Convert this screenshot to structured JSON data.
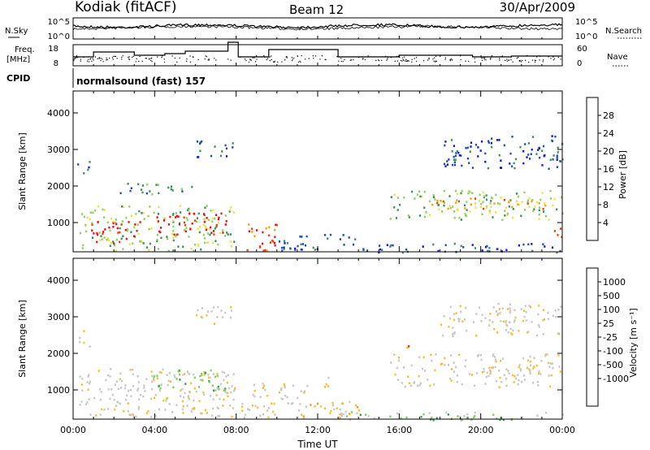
{
  "header": {
    "station": "Kodiak (fitACF)",
    "beam": "Beam 12",
    "date": "30/Apr/2009"
  },
  "sky_panel": {
    "left_label": "N.Sky",
    "left_ticks": [
      "10^5",
      "10^0"
    ],
    "right_label": "N.Search",
    "right_ticks": [
      "10^5",
      "10^0"
    ]
  },
  "freq_panel": {
    "left_label_1": "Freq.",
    "left_label_2": "[MHz]",
    "left_ticks": [
      "18",
      "8"
    ],
    "right_label": "Nave",
    "right_ticks": [
      "60",
      "0"
    ]
  },
  "cpid": {
    "label": "CPID",
    "text": "normalsound (fast) 157"
  },
  "colors": {
    "power": [
      "#0a14ee",
      "#1f4db0",
      "#3a8f5a",
      "#8fd060",
      "#f2e040",
      "#ff9a10",
      "#f04010",
      "#ee1010"
    ],
    "velocity": [
      "#ee1010",
      "#f03010",
      "#ff9a10",
      "#f4c030",
      "#c8c8c8",
      "#c8c8c8",
      "#7ad05a",
      "#3f9a4a",
      "#2a70b0",
      "#1a30c0"
    ]
  },
  "chart_data": [
    {
      "type": "heatmap",
      "name": "power",
      "xlabel": "",
      "ylabel": "Slant Range [km]",
      "x_ticks": [
        "00:00",
        "04:00",
        "08:00",
        "12:00",
        "16:00",
        "20:00",
        "00:00"
      ],
      "y_ticks": [
        "1000",
        "2000",
        "3000",
        "4000"
      ],
      "ylim": [
        200,
        4600
      ],
      "colorbar": {
        "label": "Power [dB]",
        "ticks": [
          "4",
          "8",
          "12",
          "16",
          "20",
          "24",
          "28"
        ]
      },
      "regions": [
        {
          "t0": 0.3,
          "t1": 8.0,
          "r0": 250,
          "r1": 1500,
          "level": 3
        },
        {
          "t0": 0.8,
          "t1": 3.3,
          "r0": 450,
          "r1": 1050,
          "level": 7
        },
        {
          "t0": 4.0,
          "t1": 7.7,
          "r0": 700,
          "r1": 1300,
          "level": 7
        },
        {
          "t0": 8.2,
          "t1": 10.0,
          "r0": 250,
          "r1": 1050,
          "level": 6
        },
        {
          "t0": 10.0,
          "t1": 14.0,
          "r0": 250,
          "r1": 700,
          "level": 1
        },
        {
          "t0": 14.0,
          "t1": 24.0,
          "r0": 200,
          "r1": 450,
          "level": 1
        },
        {
          "t0": 15.5,
          "t1": 24.0,
          "r0": 1100,
          "r1": 1900,
          "level": 3
        },
        {
          "t0": 17.5,
          "t1": 23.5,
          "r0": 1400,
          "r1": 1700,
          "level": 5
        },
        {
          "t0": 23.3,
          "t1": 24.0,
          "r0": 600,
          "r1": 900,
          "level": 6
        },
        {
          "t0": 0.2,
          "t1": 0.8,
          "r0": 2200,
          "r1": 2700,
          "level": 1
        },
        {
          "t0": 6.0,
          "t1": 8.2,
          "r0": 2800,
          "r1": 3300,
          "level": 1
        },
        {
          "t0": 2.0,
          "t1": 6.0,
          "r0": 1800,
          "r1": 2100,
          "level": 2
        },
        {
          "t0": 18.0,
          "t1": 24.0,
          "r0": 2500,
          "r1": 3400,
          "level": 1
        }
      ]
    },
    {
      "type": "heatmap",
      "name": "velocity",
      "xlabel": "Time UT",
      "ylabel": "Slant Range [km]",
      "x_ticks": [
        "00:00",
        "04:00",
        "08:00",
        "12:00",
        "16:00",
        "20:00",
        "00:00"
      ],
      "y_ticks": [
        "1000",
        "2000",
        "3000",
        "4000"
      ],
      "ylim": [
        200,
        4600
      ],
      "colorbar": {
        "label": "Velocity [m s⁻¹]",
        "ticks": [
          "1000",
          "500",
          "100",
          "25",
          "-25",
          "-100",
          "-500",
          "-1000"
        ]
      },
      "regions": [
        {
          "t0": 0.3,
          "t1": 8.0,
          "r0": 250,
          "r1": 1600,
          "level": 4
        },
        {
          "t0": 3.8,
          "t1": 7.5,
          "r0": 1000,
          "r1": 1600,
          "level": 6
        },
        {
          "t0": 8.2,
          "t1": 11.5,
          "r0": 250,
          "r1": 1200,
          "level": 4
        },
        {
          "t0": 11.0,
          "t1": 14.0,
          "r0": 250,
          "r1": 700,
          "level": 3
        },
        {
          "t0": 13.0,
          "t1": 24.0,
          "r0": 200,
          "r1": 420,
          "level": 6
        },
        {
          "t0": 15.5,
          "t1": 24.0,
          "r0": 1100,
          "r1": 2000,
          "level": 4
        },
        {
          "t0": 11.8,
          "t1": 12.5,
          "r0": 1100,
          "r1": 1400,
          "level": 3
        },
        {
          "t0": 16.0,
          "t1": 16.7,
          "r0": 2100,
          "r1": 2300,
          "level": 2
        },
        {
          "t0": 0.2,
          "t1": 0.8,
          "r0": 2200,
          "r1": 2700,
          "level": 4
        },
        {
          "t0": 6.0,
          "t1": 8.2,
          "r0": 2800,
          "r1": 3300,
          "level": 4
        },
        {
          "t0": 18.0,
          "t1": 24.0,
          "r0": 2500,
          "r1": 3400,
          "level": 4
        }
      ]
    }
  ]
}
